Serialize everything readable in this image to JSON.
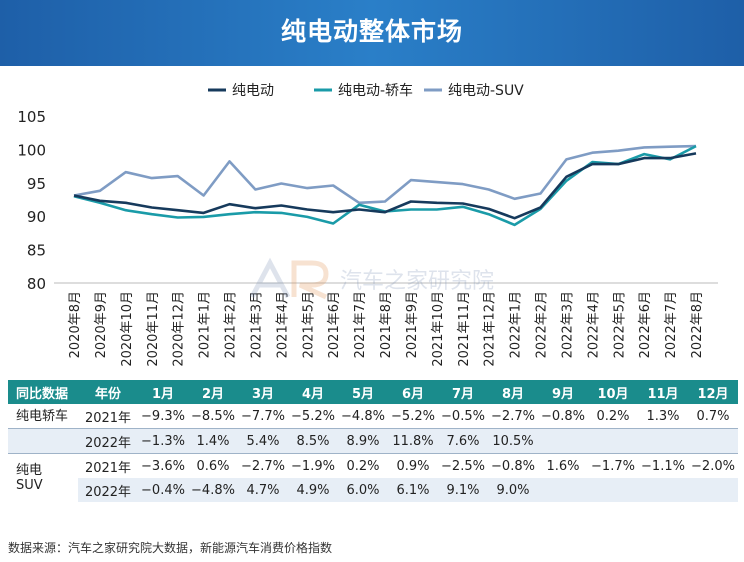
{
  "header": {
    "title": "纯电动整体市场"
  },
  "watermark": {
    "text": "汽车之家研究院"
  },
  "chart_data": {
    "type": "line",
    "title": "纯电动整体市场",
    "categories": [
      "2020年8月",
      "2020年9月",
      "2020年10月",
      "2020年11月",
      "2020年12月",
      "2021年1月",
      "2021年2月",
      "2021年3月",
      "2021年4月",
      "2021年5月",
      "2021年6月",
      "2021年7月",
      "2021年8月",
      "2021年9月",
      "2021年10月",
      "2021年11月",
      "2021年12月",
      "2022年1月",
      "2022年2月",
      "2022年3月",
      "2022年4月",
      "2022年5月",
      "2022年6月",
      "2022年7月",
      "2022年8月"
    ],
    "series": [
      {
        "name": "纯电动",
        "color": "#163a5c",
        "values": [
          93.1,
          92.3,
          92.0,
          91.3,
          90.9,
          90.5,
          91.8,
          91.2,
          91.6,
          91.0,
          90.6,
          91.0,
          90.6,
          92.2,
          92.0,
          91.9,
          91.1,
          89.7,
          91.3,
          95.9,
          97.8,
          97.8,
          98.7,
          98.7,
          99.4
        ]
      },
      {
        "name": "纯电动-轿车",
        "color": "#1a9ba8",
        "values": [
          93.0,
          92.0,
          90.9,
          90.3,
          89.8,
          89.9,
          90.3,
          90.6,
          90.5,
          89.9,
          88.9,
          91.7,
          90.7,
          91.0,
          91.0,
          91.4,
          90.3,
          88.7,
          91.1,
          95.3,
          98.1,
          97.8,
          99.3,
          98.5,
          100.5
        ]
      },
      {
        "name": "纯电动-SUV",
        "color": "#7f9cc4",
        "values": [
          93.1,
          93.8,
          96.6,
          95.7,
          96.0,
          93.1,
          98.2,
          94.0,
          94.9,
          94.2,
          94.6,
          92.0,
          92.2,
          95.4,
          95.1,
          94.8,
          94.0,
          92.6,
          93.4,
          98.5,
          99.5,
          99.8,
          100.3,
          100.4,
          100.5
        ]
      }
    ],
    "ylim": [
      80,
      105
    ],
    "yticks": [
      80,
      85,
      90,
      95,
      100,
      105
    ],
    "grid": false,
    "legend": "top-center"
  },
  "table": {
    "headers": [
      "同比数据",
      "年份",
      "1月",
      "2月",
      "3月",
      "4月",
      "5月",
      "6月",
      "7月",
      "8月",
      "9月",
      "10月",
      "11月",
      "12月"
    ],
    "rows": [
      {
        "cat": "纯电轿车",
        "year": "2021年",
        "cells": [
          "−9.3%",
          "−8.5%",
          "−7.7%",
          "−5.2%",
          "−4.8%",
          "−5.2%",
          "−0.5%",
          "−2.7%",
          "−0.8%",
          "0.2%",
          "1.3%",
          "0.7%"
        ]
      },
      {
        "cat": "",
        "year": "2022年",
        "cells": [
          "−1.3%",
          "1.4%",
          "5.4%",
          "8.5%",
          "8.9%",
          "11.8%",
          "7.6%",
          "10.5%",
          "",
          "",
          "",
          ""
        ]
      },
      {
        "cat": "纯电\nSUV",
        "year": "2021年",
        "cells": [
          "−3.6%",
          "0.6%",
          "−2.7%",
          "−1.9%",
          "0.2%",
          "0.9%",
          "−2.5%",
          "−0.8%",
          "1.6%",
          "−1.7%",
          "−1.1%",
          "−2.0%"
        ]
      },
      {
        "cat": "",
        "year": "2022年",
        "cells": [
          "−0.4%",
          "−4.8%",
          "4.7%",
          "4.9%",
          "6.0%",
          "6.1%",
          "9.1%",
          "9.0%",
          "",
          "",
          "",
          ""
        ]
      }
    ]
  },
  "source": "数据来源：汽车之家研究院大数据，新能源汽车消费价格指数"
}
